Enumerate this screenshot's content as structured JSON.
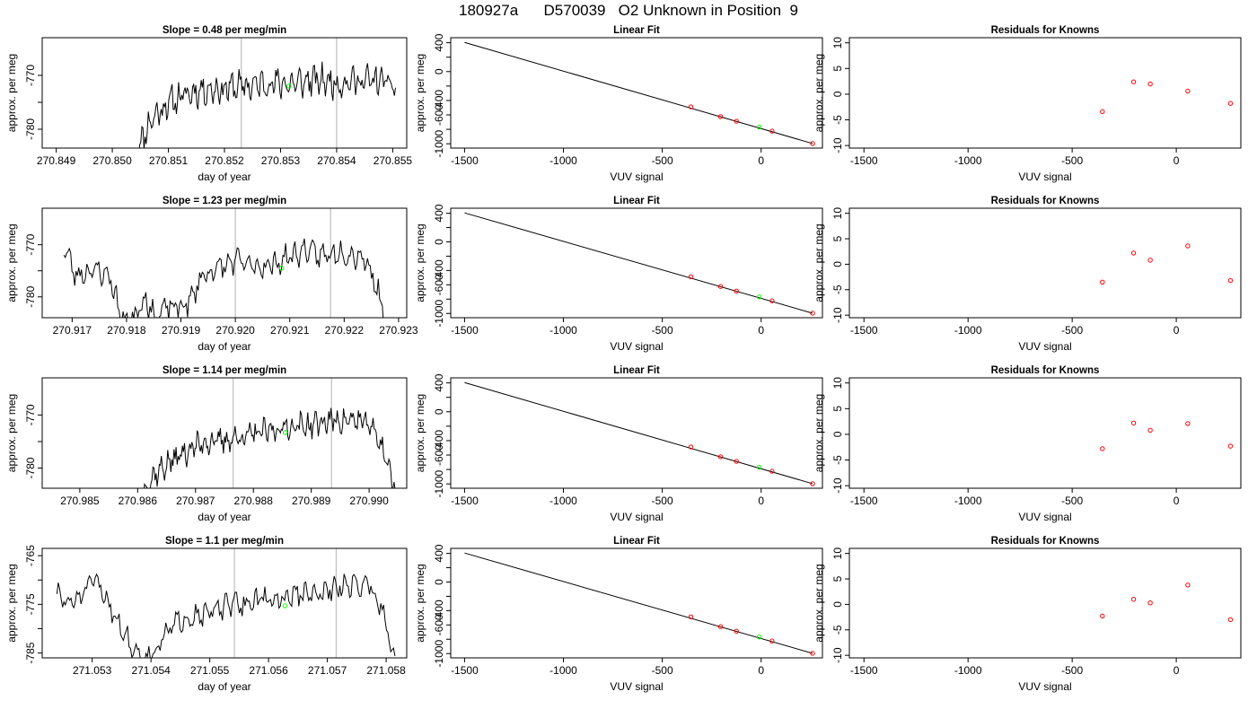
{
  "figure": {
    "title": "180927a      D570039   O2 Unknown in Position  9"
  },
  "colors": {
    "line": "#000000",
    "marker": "#ff0000",
    "unknown": "#00ff00",
    "vline": "#bebebe"
  },
  "chart_data": [
    {
      "type": "line",
      "title": "Slope =  0.48  per meg/min",
      "xlabel": "day of year",
      "ylabel": "approx. per meg",
      "xlim": [
        270.84875,
        270.85525
      ],
      "ylim": [
        -783.5,
        -763
      ],
      "xticks": [
        270.849,
        270.85,
        270.851,
        270.852,
        270.853,
        270.854,
        270.855
      ],
      "xtick_labels": [
        "270.849",
        "270.850",
        "270.851",
        "270.852",
        "270.853",
        "270.854",
        "270.855"
      ],
      "yticks": [
        -780,
        -775,
        -770
      ],
      "ytick_labels": [
        "-780",
        "",
        "-770"
      ],
      "x_start": 270.85045,
      "x_end": 270.85505,
      "series_base": [
        -783.5,
        -778,
        -775.5,
        -774,
        -773,
        -772.5,
        -772.5,
        -772,
        -772,
        -771.5,
        -771.5,
        -771.5,
        -771,
        -771,
        -771.5,
        -771,
        -771,
        -771,
        -772
      ],
      "wiggle": 3,
      "seed": 11,
      "vlines": [
        270.8523,
        270.854
      ],
      "unknown_point": {
        "x": 270.85315,
        "y": -772
      }
    },
    {
      "type": "scatter",
      "title": "Linear Fit",
      "xlabel": "VUV signal",
      "ylabel": "approx. per meg",
      "xlim": [
        -1570,
        310
      ],
      "ylim": [
        -1060,
        470
      ],
      "xticks": [
        -1500,
        -1000,
        -500,
        0
      ],
      "xtick_labels": [
        "-1500",
        "-1000",
        "-500",
        "0"
      ],
      "yticks": [
        -1000,
        -800,
        -600,
        -400,
        -200,
        0,
        200,
        400
      ],
      "ytick_labels": [
        "-1000",
        "",
        "-600",
        "-400",
        "",
        "0",
        "",
        "400"
      ],
      "fit_line": {
        "x": [
          -1500,
          260
        ],
        "y": [
          405,
          -997
        ]
      },
      "knowns": {
        "x": [
          -355,
          -205,
          -125,
          55,
          260
        ],
        "y": [
          -488,
          -624,
          -688,
          -825,
          -997
        ]
      },
      "unknown_point": {
        "x": -10,
        "y": -769
      }
    },
    {
      "type": "scatter",
      "title": "Residuals for Knowns",
      "xlabel": "VUV signal",
      "ylabel": "approx. per meg",
      "xlim": [
        -1570,
        310
      ],
      "ylim": [
        -10.5,
        11
      ],
      "xticks": [
        -1500,
        -1000,
        -500,
        0
      ],
      "xtick_labels": [
        "-1500",
        "-1000",
        "-500",
        "0"
      ],
      "yticks": [
        -10,
        -5,
        0,
        5,
        10
      ],
      "ytick_labels": [
        "-10",
        "-5",
        "0",
        "5",
        "10"
      ],
      "knowns": {
        "x": [
          -355,
          -205,
          -125,
          55,
          260
        ],
        "y": [
          -3.4,
          2.4,
          2.0,
          0.6,
          -1.8
        ]
      }
    },
    {
      "type": "line",
      "title": "Slope =  1.23  per meg/min",
      "xlabel": "day of year",
      "ylabel": "approx. per meg",
      "xlim": [
        270.91645,
        270.92315
      ],
      "ylim": [
        -784,
        -763
      ],
      "xticks": [
        270.917,
        270.918,
        270.919,
        270.92,
        270.921,
        270.922,
        270.923
      ],
      "xtick_labels": [
        "270.917",
        "270.918",
        "270.919",
        "270.920",
        "270.921",
        "270.922",
        "270.923"
      ],
      "yticks": [
        -780,
        -775,
        -770
      ],
      "ytick_labels": [
        "-780",
        "",
        "-770"
      ],
      "x_start": 270.91685,
      "x_end": 270.92275,
      "series_base": [
        -770,
        -776,
        -775,
        -775,
        -776,
        -784,
        -784,
        -780,
        -784,
        -782,
        -782,
        -781,
        -776,
        -775,
        -774,
        -773,
        -774,
        -774,
        -774,
        -773,
        -772,
        -771,
        -772,
        -772,
        -771,
        -772,
        -772,
        -776,
        -784
      ],
      "wiggle": 2.5,
      "seed": 23,
      "vlines": [
        270.92,
        270.92175
      ],
      "unknown_point": {
        "x": 270.92085,
        "y": -774.5
      }
    },
    {
      "type": "scatter",
      "title": "Linear Fit",
      "xlabel": "VUV signal",
      "ylabel": "approx. per meg",
      "xlim": [
        -1570,
        310
      ],
      "ylim": [
        -1060,
        470
      ],
      "xticks": [
        -1500,
        -1000,
        -500,
        0
      ],
      "xtick_labels": [
        "-1500",
        "-1000",
        "-500",
        "0"
      ],
      "yticks": [
        -1000,
        -800,
        -600,
        -400,
        -200,
        0,
        200,
        400
      ],
      "ytick_labels": [
        "-1000",
        "",
        "-600",
        "-400",
        "",
        "0",
        "",
        "400"
      ],
      "fit_line": {
        "x": [
          -1500,
          260
        ],
        "y": [
          405,
          -997
        ]
      },
      "knowns": {
        "x": [
          -355,
          -205,
          -125,
          55,
          260
        ],
        "y": [
          -488,
          -624,
          -688,
          -825,
          -997
        ]
      },
      "unknown_point": {
        "x": -10,
        "y": -769
      }
    },
    {
      "type": "scatter",
      "title": "Residuals for Knowns",
      "xlabel": "VUV signal",
      "ylabel": "approx. per meg",
      "xlim": [
        -1570,
        310
      ],
      "ylim": [
        -10.5,
        11
      ],
      "xticks": [
        -1500,
        -1000,
        -500,
        0
      ],
      "xtick_labels": [
        "-1500",
        "-1000",
        "-500",
        "0"
      ],
      "yticks": [
        -10,
        -5,
        0,
        5,
        10
      ],
      "ytick_labels": [
        "-10",
        "-5",
        "0",
        "5",
        "10"
      ],
      "knowns": {
        "x": [
          -355,
          -205,
          -125,
          55,
          260
        ],
        "y": [
          -3.5,
          2.2,
          0.8,
          3.6,
          -3.2
        ]
      }
    },
    {
      "type": "line",
      "title": "Slope =  1.14  per meg/min",
      "xlabel": "day of year",
      "ylabel": "approx. per meg",
      "xlim": [
        270.98435,
        270.99065
      ],
      "ylim": [
        -783.8,
        -763
      ],
      "xticks": [
        270.985,
        270.986,
        270.987,
        270.988,
        270.989,
        270.99
      ],
      "xtick_labels": [
        "270.985",
        "270.986",
        "270.987",
        "270.988",
        "270.989",
        "270.990"
      ],
      "yticks": [
        -780,
        -775,
        -770
      ],
      "ytick_labels": [
        "-780",
        "",
        "-770"
      ],
      "x_start": 270.9861,
      "x_end": 270.99045,
      "series_base": [
        -784,
        -781,
        -779,
        -777.5,
        -776,
        -775,
        -775,
        -774.5,
        -774,
        -773.5,
        -773,
        -772.5,
        -772,
        -772,
        -771.5,
        -771,
        -771,
        -771,
        -772,
        -776,
        -784
      ],
      "wiggle": 2.5,
      "seed": 37,
      "vlines": [
        270.98765,
        270.98935
      ],
      "unknown_point": {
        "x": 270.98855,
        "y": -773.3
      }
    },
    {
      "type": "scatter",
      "title": "Linear Fit",
      "xlabel": "VUV signal",
      "ylabel": "approx. per meg",
      "xlim": [
        -1570,
        310
      ],
      "ylim": [
        -1060,
        470
      ],
      "xticks": [
        -1500,
        -1000,
        -500,
        0
      ],
      "xtick_labels": [
        "-1500",
        "-1000",
        "-500",
        "0"
      ],
      "yticks": [
        -1000,
        -800,
        -600,
        -400,
        -200,
        0,
        200,
        400
      ],
      "ytick_labels": [
        "-1000",
        "",
        "-600",
        "-400",
        "",
        "0",
        "",
        "400"
      ],
      "fit_line": {
        "x": [
          -1500,
          260
        ],
        "y": [
          405,
          -997
        ]
      },
      "knowns": {
        "x": [
          -355,
          -205,
          -125,
          55,
          260
        ],
        "y": [
          -488,
          -624,
          -688,
          -825,
          -997
        ]
      },
      "unknown_point": {
        "x": -10,
        "y": -769
      }
    },
    {
      "type": "scatter",
      "title": "Residuals for Knowns",
      "xlabel": "VUV signal",
      "ylabel": "approx. per meg",
      "xlim": [
        -1570,
        310
      ],
      "ylim": [
        -10.5,
        11
      ],
      "xticks": [
        -1500,
        -1000,
        -500,
        0
      ],
      "xtick_labels": [
        "-1500",
        "-1000",
        "-500",
        "0"
      ],
      "yticks": [
        -10,
        -5,
        0,
        5,
        10
      ],
      "ytick_labels": [
        "-10",
        "-5",
        "0",
        "5",
        "10"
      ],
      "knowns": {
        "x": [
          -355,
          -205,
          -125,
          55,
          260
        ],
        "y": [
          -2.8,
          2.2,
          0.8,
          2.1,
          -2.3
        ]
      }
    },
    {
      "type": "line",
      "title": "Slope =  1.1  per meg/min",
      "xlabel": "day of year",
      "ylabel": "approx. per meg",
      "xlim": [
        271.05215,
        271.05835
      ],
      "ylim": [
        -786,
        -763.5
      ],
      "xticks": [
        271.053,
        271.054,
        271.055,
        271.056,
        271.057,
        271.058
      ],
      "xtick_labels": [
        "271.053",
        "271.054",
        "271.055",
        "271.056",
        "271.057",
        "271.058"
      ],
      "yticks": [
        -785,
        -780,
        -775,
        -770,
        -765
      ],
      "ytick_labels": [
        "-785",
        "",
        "-775",
        "",
        "-765"
      ],
      "x_start": 271.0524,
      "x_end": 271.05815,
      "series_base": [
        -773,
        -775,
        -773,
        -770,
        -774,
        -779,
        -784,
        -786,
        -784,
        -780,
        -778,
        -777,
        -777,
        -776,
        -775,
        -775,
        -774,
        -774,
        -774,
        -773,
        -773,
        -773,
        -772,
        -771,
        -771,
        -771,
        -776,
        -786
      ],
      "wiggle": 2.5,
      "seed": 51,
      "vlines": [
        271.05542,
        271.05715
      ],
      "unknown_point": {
        "x": 271.05628,
        "y": -775.3
      }
    },
    {
      "type": "scatter",
      "title": "Linear Fit",
      "xlabel": "VUV signal",
      "ylabel": "approx. per meg",
      "xlim": [
        -1570,
        310
      ],
      "ylim": [
        -1060,
        470
      ],
      "xticks": [
        -1500,
        -1000,
        -500,
        0
      ],
      "xtick_labels": [
        "-1500",
        "-1000",
        "-500",
        "0"
      ],
      "yticks": [
        -1000,
        -800,
        -600,
        -400,
        -200,
        0,
        200,
        400
      ],
      "ytick_labels": [
        "-1000",
        "",
        "-600",
        "-400",
        "",
        "0",
        "",
        "400"
      ],
      "fit_line": {
        "x": [
          -1500,
          260
        ],
        "y": [
          405,
          -997
        ]
      },
      "knowns": {
        "x": [
          -355,
          -205,
          -125,
          55,
          260
        ],
        "y": [
          -488,
          -624,
          -688,
          -825,
          -997
        ]
      },
      "unknown_point": {
        "x": -10,
        "y": -769
      }
    },
    {
      "type": "scatter",
      "title": "Residuals for Knowns",
      "xlabel": "VUV signal",
      "ylabel": "approx. per meg",
      "xlim": [
        -1570,
        310
      ],
      "ylim": [
        -10.5,
        11
      ],
      "xticks": [
        -1500,
        -1000,
        -500,
        0
      ],
      "xtick_labels": [
        "-1500",
        "-1000",
        "-500",
        "0"
      ],
      "yticks": [
        -10,
        -5,
        0,
        5,
        10
      ],
      "ytick_labels": [
        "-10",
        "-5",
        "0",
        "5",
        "10"
      ],
      "knowns": {
        "x": [
          -355,
          -205,
          -125,
          55,
          260
        ],
        "y": [
          -2.3,
          1.0,
          0.3,
          3.8,
          -3.0
        ]
      }
    }
  ]
}
